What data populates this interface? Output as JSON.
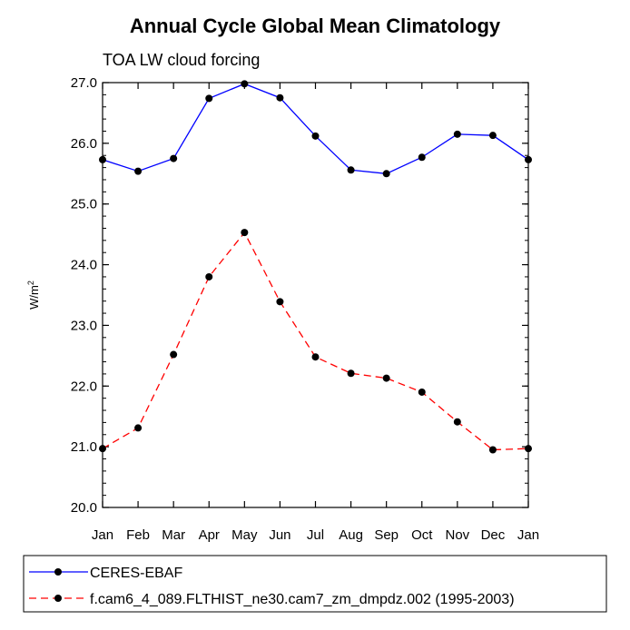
{
  "chart_data": {
    "type": "line",
    "title": "Annual Cycle Global Mean Climatology",
    "subtitle": "TOA LW cloud forcing",
    "xlabel": "",
    "ylabel": "W/m",
    "ylabel_superscript": "2",
    "categories": [
      "Jan",
      "Feb",
      "Mar",
      "Apr",
      "May",
      "Jun",
      "Jul",
      "Aug",
      "Sep",
      "Oct",
      "Nov",
      "Dec",
      "Jan"
    ],
    "ylim": [
      20.0,
      27.0
    ],
    "yticks": [
      "20.0",
      "21.0",
      "22.0",
      "23.0",
      "24.0",
      "25.0",
      "26.0",
      "27.0"
    ],
    "grid": false,
    "legend_position": "bottom",
    "series": [
      {
        "name": "CERES-EBAF",
        "color": "#0000ff",
        "line_style": "solid",
        "marker": "filled-circle",
        "values": [
          25.73,
          25.54,
          25.75,
          26.74,
          26.98,
          26.75,
          26.12,
          25.56,
          25.5,
          25.77,
          26.15,
          26.13,
          25.73
        ]
      },
      {
        "name": "f.cam6_4_089.FLTHIST_ne30.cam7_zm_dmpdz.002 (1995-2003)",
        "color": "#ff0000",
        "line_style": "dashed",
        "marker": "filled-circle",
        "values": [
          20.97,
          21.31,
          22.52,
          23.8,
          24.53,
          23.39,
          22.48,
          22.21,
          22.13,
          21.9,
          21.41,
          20.95,
          20.97
        ]
      }
    ]
  }
}
